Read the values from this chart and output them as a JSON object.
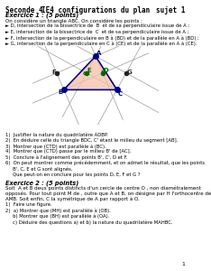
{
  "title_left": "Seconde 4",
  "title_center": "IE4 configurations du plan",
  "title_right": "sujet 1",
  "ex1_title": "Exercice 1 : (5 points)",
  "ex1_intro": "On considère un triangle ABC. On considère les points :",
  "ex1_bullets": [
    "D, intersection de la bissectrice de  B  et de sa perpendiculaire issue de A ;",
    "E, intersection de la bissectrice de  C  et de sa perpendiculaire issue de A ;",
    "F, intersection de la perpendiculaire en B à (BD) et de la parallèle en A à (BD) ;",
    "G, intersection de la perpendiculaire en C à (CE) et de la parallèle en A à (CE)."
  ],
  "ex1_questions": [
    "1)  Justifier la nature du quadrilatère ADBP.",
    "2)  En déduire celle du triangle BDC, C' étant le milieu du segment [AB].",
    "3)  Montrer que (CTD) est parallèle à (BC).",
    "4)  Montrer que (CTD) passe par le milieu B' de [AC].",
    "5)  Conclure à l'alignement des points B', C', D et F.",
    "6)  On peut montrer comme précédemment, et on admet le résultat, que les points",
    "     B', C, E et G sont alignés.",
    "     Que peut-on en conclure pour les points D, E, F et G ?"
  ],
  "ex2_title": "Exercice 2 : (5 points)",
  "ex2_intro_lines": [
    "Soit  A et B deux points distincts d'un cercle de centre O , non diamétralement",
    "opposés. Pour tout point M de , outre que A et B, on désigne par H l'orthocentre de",
    "AMB. Soit enfin, C la symétrique de A par rapport à O."
  ],
  "ex2_questions": [
    "1)  Faire une figure.",
    "2)  a) Montrer que (MH) est parallèle à (OB).",
    "     b) Montrer que (BH) est parallèle à (OA).",
    "     c) Déduire des questions a) et b) la nature du quadrilatère MAHBC."
  ],
  "page_num": "1",
  "triangle_color": "#f5c0a8",
  "triangle_edge_color": "#000080",
  "line_color": "#999999",
  "point_color_blue": "#000080",
  "point_color_green": "#006600",
  "point_color_dark": "#222222"
}
